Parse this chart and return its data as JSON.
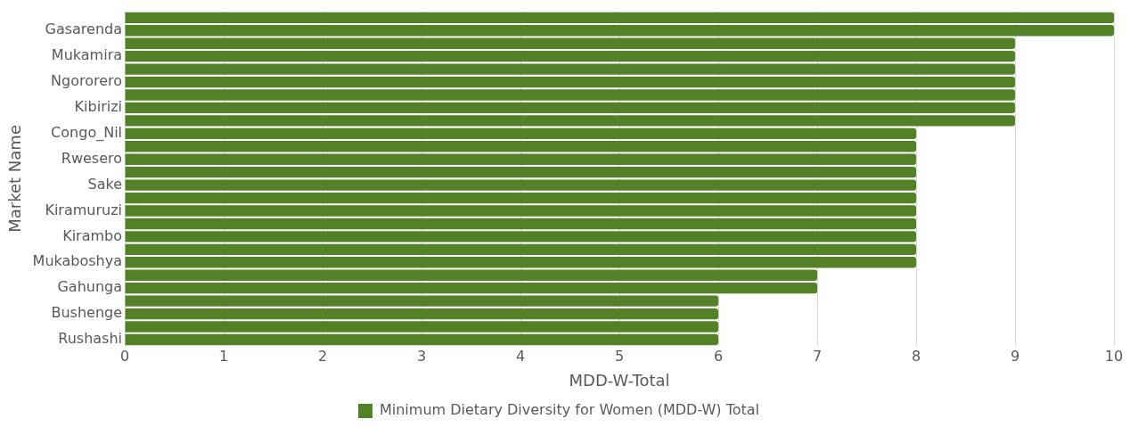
{
  "chart_data": {
    "type": "bar",
    "orientation": "horizontal",
    "xlabel": "MDD-W-Total",
    "ylabel": "Market Name",
    "categories": [
      null,
      "Gasarenda",
      null,
      "Mukamira",
      null,
      "Ngororero",
      null,
      "Kibirizi",
      null,
      "Congo_Nil",
      null,
      "Rwesero",
      null,
      "Sake",
      null,
      "Kiramuruzi",
      null,
      "Kirambo",
      null,
      "Mukaboshya",
      null,
      "Gahunga",
      null,
      "Bushenge",
      null,
      "Rushashi"
    ],
    "series": [
      {
        "name": "Minimum Dietary Diversity for Women (MDD-W) Total",
        "color": "#538127",
        "values": [
          10,
          10,
          9,
          9,
          9,
          9,
          9,
          9,
          9,
          8,
          8,
          8,
          8,
          8,
          8,
          8,
          8,
          8,
          8,
          8,
          7,
          7,
          6,
          6,
          6,
          6
        ]
      }
    ],
    "xlim": [
      0,
      10
    ],
    "xticks": [
      0,
      1,
      2,
      3,
      4,
      5,
      6,
      7,
      8,
      9,
      10
    ],
    "grid": "x",
    "legend": "bottom"
  }
}
